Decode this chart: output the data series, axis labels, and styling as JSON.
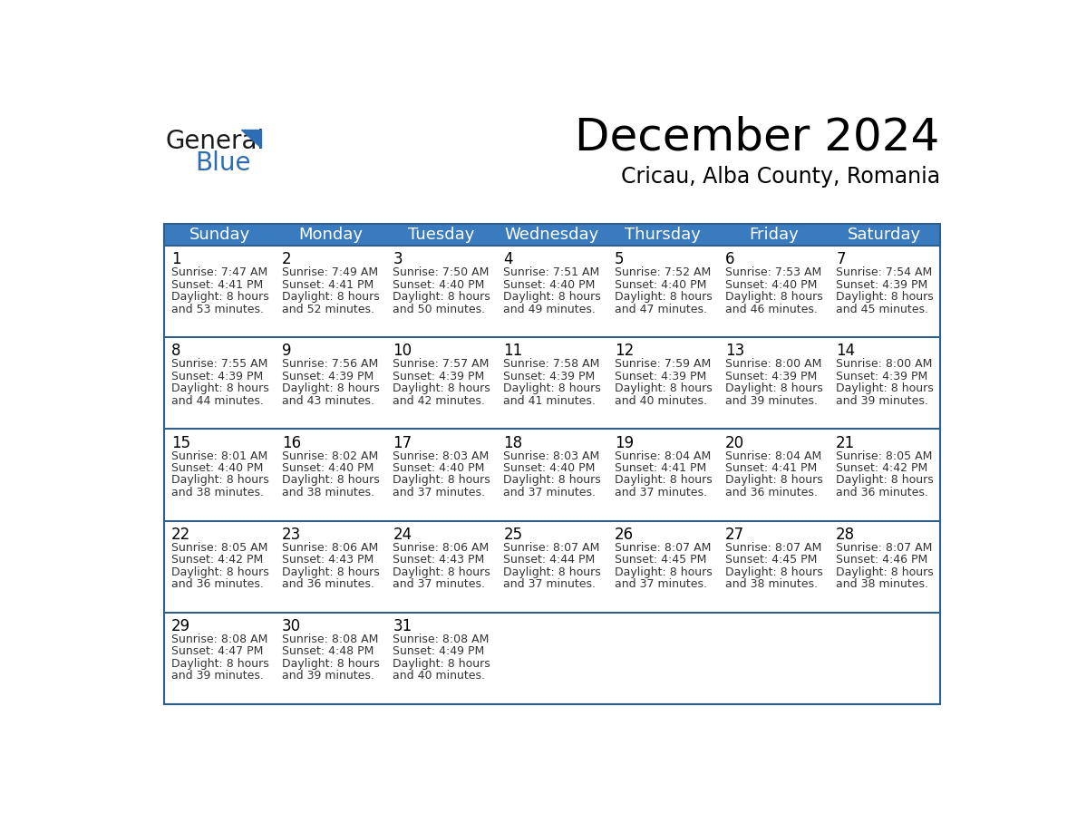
{
  "title": "December 2024",
  "subtitle": "Cricau, Alba County, Romania",
  "header_bg": "#3a7abf",
  "header_text": "#ffffff",
  "cell_bg": "#ffffff",
  "border_color": "#2d5f8a",
  "text_color": "#333333",
  "days_of_week": [
    "Sunday",
    "Monday",
    "Tuesday",
    "Wednesday",
    "Thursday",
    "Friday",
    "Saturday"
  ],
  "weeks": [
    [
      {
        "day": 1,
        "sunrise": "7:47 AM",
        "sunset": "4:41 PM",
        "daylight": "8 hours and 53 minutes."
      },
      {
        "day": 2,
        "sunrise": "7:49 AM",
        "sunset": "4:41 PM",
        "daylight": "8 hours and 52 minutes."
      },
      {
        "day": 3,
        "sunrise": "7:50 AM",
        "sunset": "4:40 PM",
        "daylight": "8 hours and 50 minutes."
      },
      {
        "day": 4,
        "sunrise": "7:51 AM",
        "sunset": "4:40 PM",
        "daylight": "8 hours and 49 minutes."
      },
      {
        "day": 5,
        "sunrise": "7:52 AM",
        "sunset": "4:40 PM",
        "daylight": "8 hours and 47 minutes."
      },
      {
        "day": 6,
        "sunrise": "7:53 AM",
        "sunset": "4:40 PM",
        "daylight": "8 hours and 46 minutes."
      },
      {
        "day": 7,
        "sunrise": "7:54 AM",
        "sunset": "4:39 PM",
        "daylight": "8 hours and 45 minutes."
      }
    ],
    [
      {
        "day": 8,
        "sunrise": "7:55 AM",
        "sunset": "4:39 PM",
        "daylight": "8 hours and 44 minutes."
      },
      {
        "day": 9,
        "sunrise": "7:56 AM",
        "sunset": "4:39 PM",
        "daylight": "8 hours and 43 minutes."
      },
      {
        "day": 10,
        "sunrise": "7:57 AM",
        "sunset": "4:39 PM",
        "daylight": "8 hours and 42 minutes."
      },
      {
        "day": 11,
        "sunrise": "7:58 AM",
        "sunset": "4:39 PM",
        "daylight": "8 hours and 41 minutes."
      },
      {
        "day": 12,
        "sunrise": "7:59 AM",
        "sunset": "4:39 PM",
        "daylight": "8 hours and 40 minutes."
      },
      {
        "day": 13,
        "sunrise": "8:00 AM",
        "sunset": "4:39 PM",
        "daylight": "8 hours and 39 minutes."
      },
      {
        "day": 14,
        "sunrise": "8:00 AM",
        "sunset": "4:39 PM",
        "daylight": "8 hours and 39 minutes."
      }
    ],
    [
      {
        "day": 15,
        "sunrise": "8:01 AM",
        "sunset": "4:40 PM",
        "daylight": "8 hours and 38 minutes."
      },
      {
        "day": 16,
        "sunrise": "8:02 AM",
        "sunset": "4:40 PM",
        "daylight": "8 hours and 38 minutes."
      },
      {
        "day": 17,
        "sunrise": "8:03 AM",
        "sunset": "4:40 PM",
        "daylight": "8 hours and 37 minutes."
      },
      {
        "day": 18,
        "sunrise": "8:03 AM",
        "sunset": "4:40 PM",
        "daylight": "8 hours and 37 minutes."
      },
      {
        "day": 19,
        "sunrise": "8:04 AM",
        "sunset": "4:41 PM",
        "daylight": "8 hours and 37 minutes."
      },
      {
        "day": 20,
        "sunrise": "8:04 AM",
        "sunset": "4:41 PM",
        "daylight": "8 hours and 36 minutes."
      },
      {
        "day": 21,
        "sunrise": "8:05 AM",
        "sunset": "4:42 PM",
        "daylight": "8 hours and 36 minutes."
      }
    ],
    [
      {
        "day": 22,
        "sunrise": "8:05 AM",
        "sunset": "4:42 PM",
        "daylight": "8 hours and 36 minutes."
      },
      {
        "day": 23,
        "sunrise": "8:06 AM",
        "sunset": "4:43 PM",
        "daylight": "8 hours and 36 minutes."
      },
      {
        "day": 24,
        "sunrise": "8:06 AM",
        "sunset": "4:43 PM",
        "daylight": "8 hours and 37 minutes."
      },
      {
        "day": 25,
        "sunrise": "8:07 AM",
        "sunset": "4:44 PM",
        "daylight": "8 hours and 37 minutes."
      },
      {
        "day": 26,
        "sunrise": "8:07 AM",
        "sunset": "4:45 PM",
        "daylight": "8 hours and 37 minutes."
      },
      {
        "day": 27,
        "sunrise": "8:07 AM",
        "sunset": "4:45 PM",
        "daylight": "8 hours and 38 minutes."
      },
      {
        "day": 28,
        "sunrise": "8:07 AM",
        "sunset": "4:46 PM",
        "daylight": "8 hours and 38 minutes."
      }
    ],
    [
      {
        "day": 29,
        "sunrise": "8:08 AM",
        "sunset": "4:47 PM",
        "daylight": "8 hours and 39 minutes."
      },
      {
        "day": 30,
        "sunrise": "8:08 AM",
        "sunset": "4:48 PM",
        "daylight": "8 hours and 39 minutes."
      },
      {
        "day": 31,
        "sunrise": "8:08 AM",
        "sunset": "4:49 PM",
        "daylight": "8 hours and 40 minutes."
      },
      null,
      null,
      null,
      null
    ]
  ],
  "logo_general_color": "#1a1a1a",
  "logo_blue_color": "#2d6db5",
  "logo_triangle_color": "#2d6db5",
  "title_fontsize": 36,
  "subtitle_fontsize": 17,
  "header_fontsize": 13,
  "day_number_fontsize": 12,
  "cell_text_fontsize": 9
}
